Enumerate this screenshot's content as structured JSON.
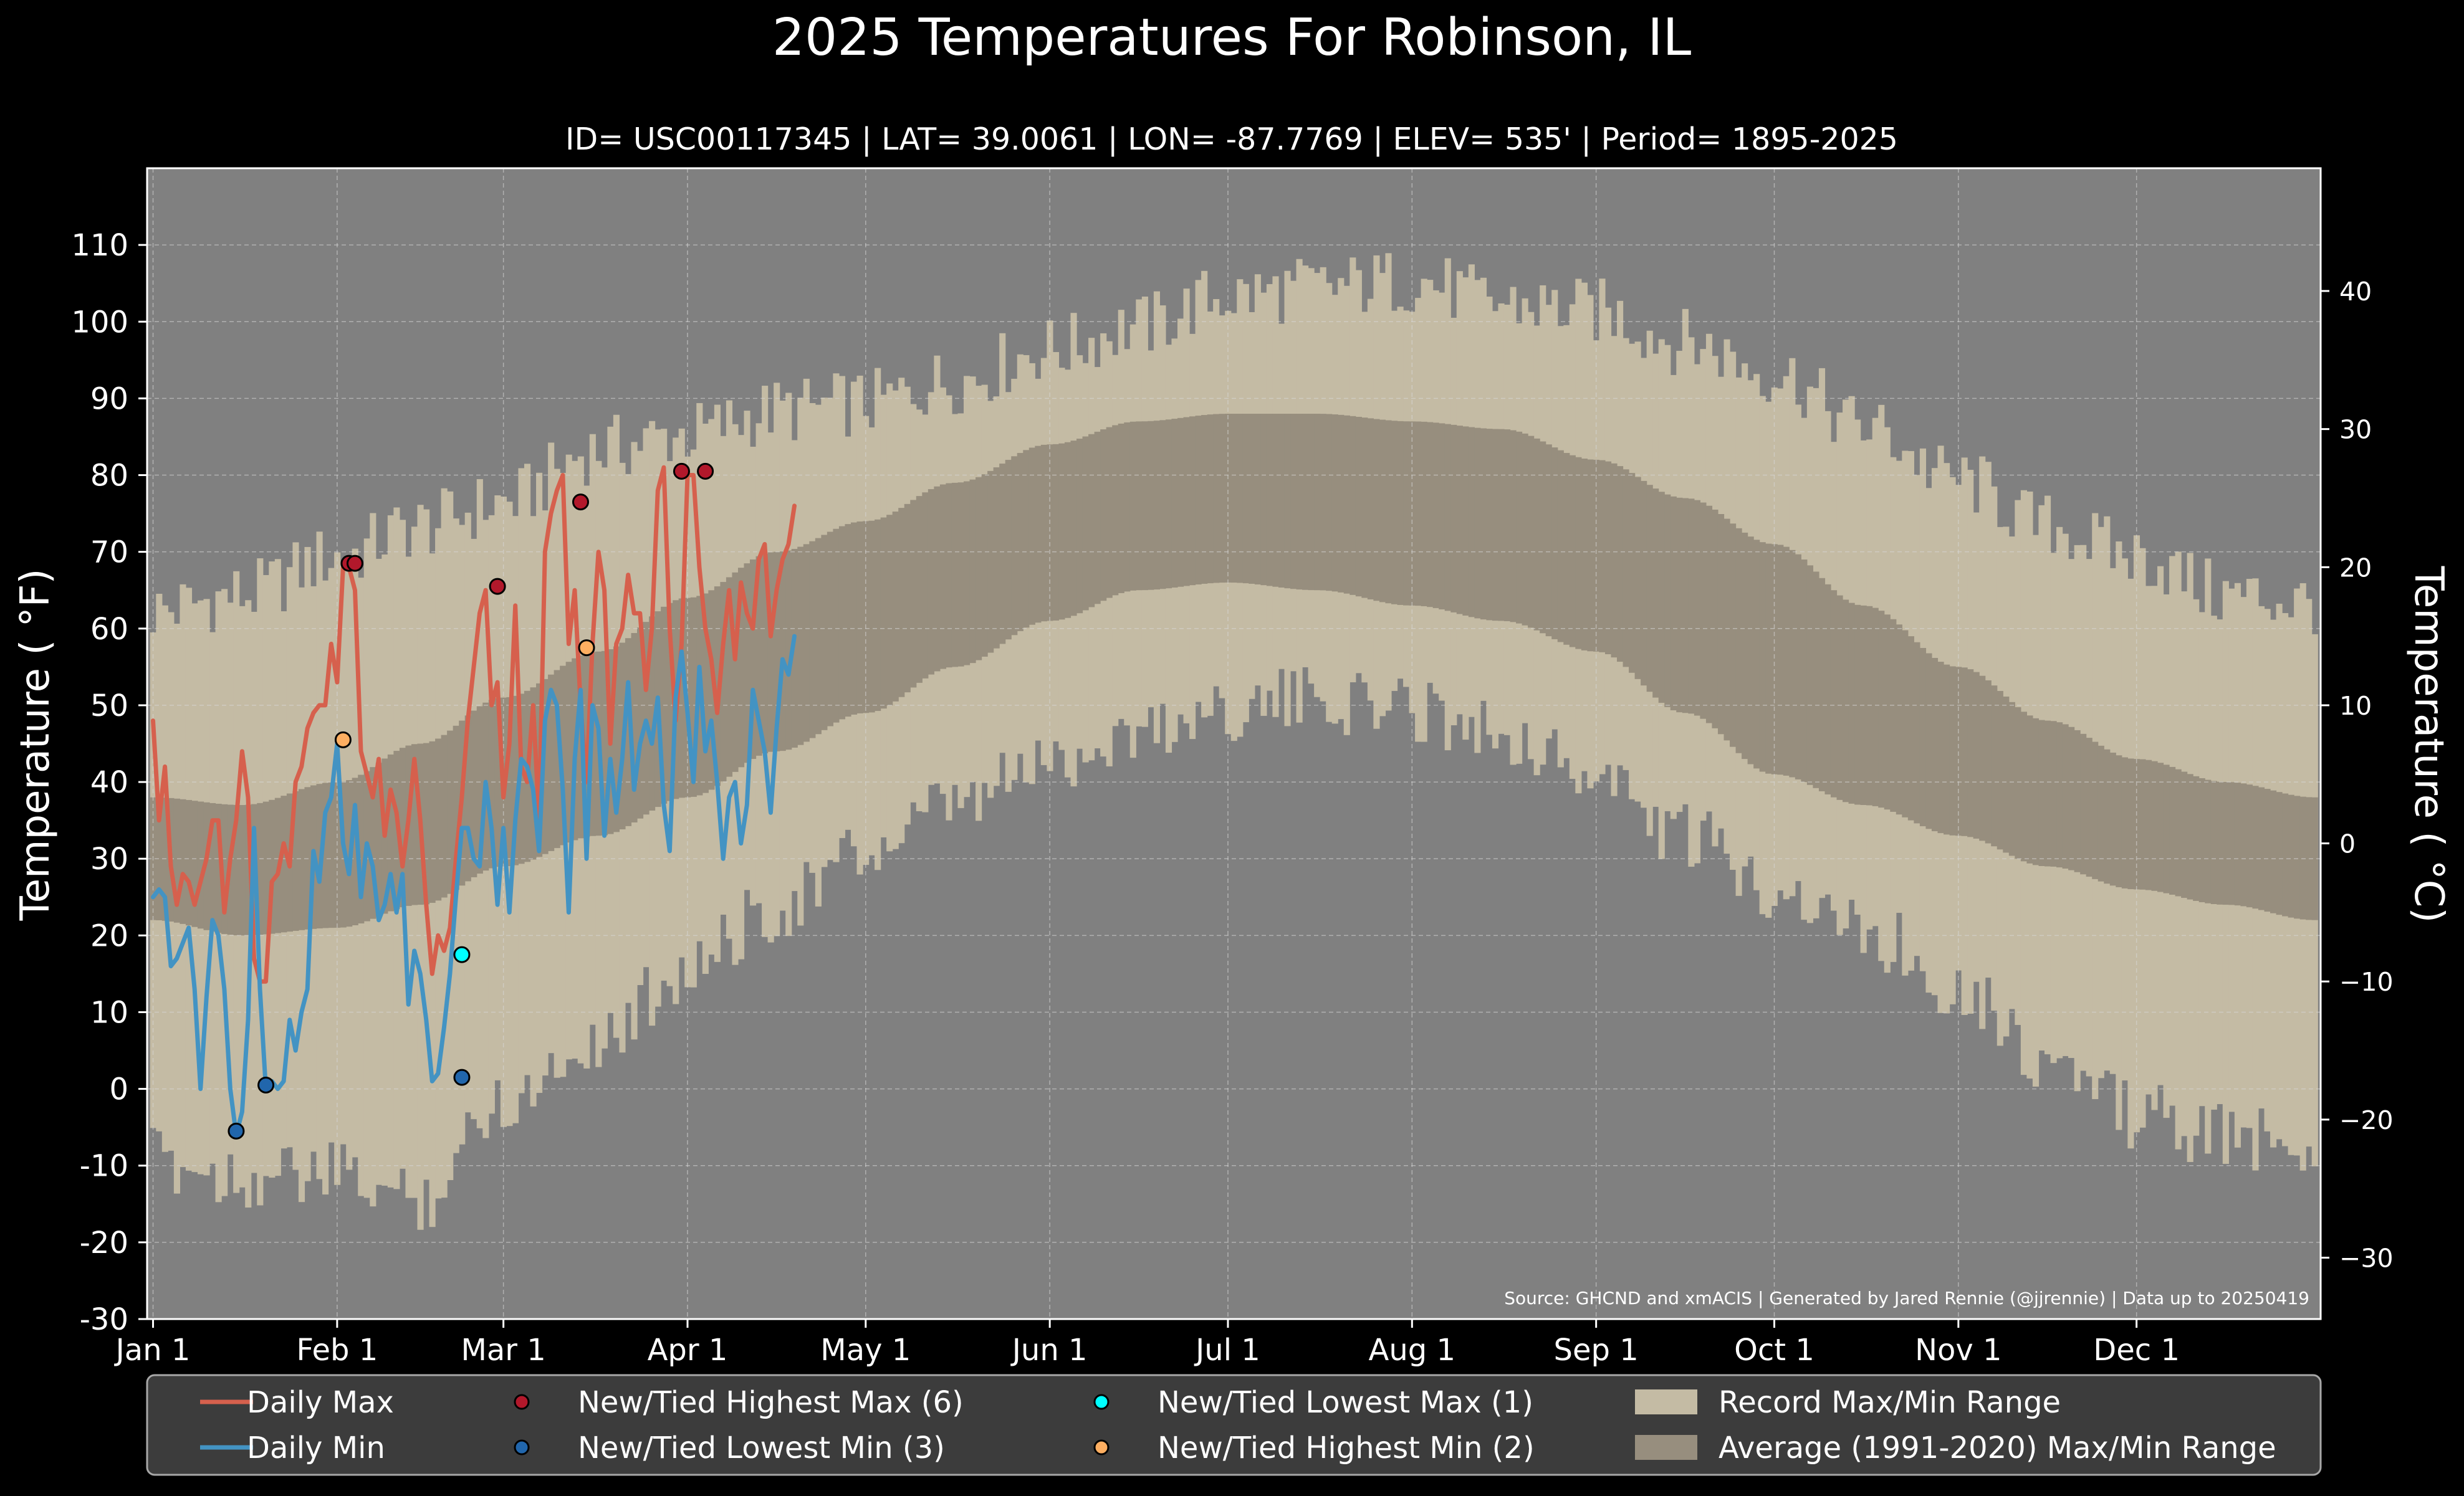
{
  "chart_data": {
    "type": "line",
    "title": "2025 Temperatures For Robinson, IL",
    "subtitle": "ID= USC00117345 | LAT= 39.0061 | LON= -87.7769 | ELEV= 535' | Period= 1895-2025",
    "ylabel_left": "Temperature ( °F)",
    "ylabel_right": "Temperature ( °C)",
    "source": "Source: GHCND and xmACIS | Generated by Jared Rennie (@jjrennie) | Data up to 20250419",
    "ylim_f": [
      -30,
      120
    ],
    "xlim_day": [
      -1,
      365
    ],
    "y_ticks_f": [
      -30,
      -20,
      -10,
      0,
      10,
      20,
      30,
      40,
      50,
      60,
      70,
      80,
      90,
      100,
      110
    ],
    "y_ticks_c": [
      -30,
      -20,
      -10,
      0,
      10,
      20,
      30,
      40
    ],
    "x_ticks": [
      {
        "label": "Jan 1",
        "day": 0
      },
      {
        "label": "Feb 1",
        "day": 31
      },
      {
        "label": "Mar 1",
        "day": 59
      },
      {
        "label": "Apr 1",
        "day": 90
      },
      {
        "label": "May 1",
        "day": 120
      },
      {
        "label": "Jun 1",
        "day": 151
      },
      {
        "label": "Jul 1",
        "day": 181
      },
      {
        "label": "Aug 1",
        "day": 212
      },
      {
        "label": "Sep 1",
        "day": 243
      },
      {
        "label": "Oct 1",
        "day": 273
      },
      {
        "label": "Nov 1",
        "day": 304
      },
      {
        "label": "Dec 1",
        "day": 334
      }
    ],
    "grid": true,
    "legend_position": "bottom",
    "record_max_anchors": [
      [
        0,
        61
      ],
      [
        15,
        63
      ],
      [
        31,
        68
      ],
      [
        45,
        72
      ],
      [
        59,
        75
      ],
      [
        75,
        82
      ],
      [
        90,
        84
      ],
      [
        105,
        87
      ],
      [
        120,
        88
      ],
      [
        135,
        91
      ],
      [
        151,
        95
      ],
      [
        166,
        98
      ],
      [
        181,
        102
      ],
      [
        196,
        103
      ],
      [
        212,
        104
      ],
      [
        227,
        101
      ],
      [
        243,
        100
      ],
      [
        258,
        96
      ],
      [
        273,
        92
      ],
      [
        288,
        85
      ],
      [
        304,
        78
      ],
      [
        319,
        72
      ],
      [
        334,
        68
      ],
      [
        349,
        63
      ],
      [
        364,
        62
      ]
    ],
    "record_min_anchors": [
      [
        0,
        -8
      ],
      [
        15,
        -10
      ],
      [
        31,
        -10
      ],
      [
        45,
        -13
      ],
      [
        59,
        0
      ],
      [
        75,
        8
      ],
      [
        90,
        17
      ],
      [
        105,
        25
      ],
      [
        120,
        32
      ],
      [
        135,
        38
      ],
      [
        151,
        44
      ],
      [
        166,
        48
      ],
      [
        181,
        51
      ],
      [
        196,
        52
      ],
      [
        212,
        51
      ],
      [
        227,
        48
      ],
      [
        243,
        42
      ],
      [
        258,
        34
      ],
      [
        273,
        28
      ],
      [
        288,
        22
      ],
      [
        304,
        15
      ],
      [
        319,
        5
      ],
      [
        334,
        -2
      ],
      [
        349,
        -5
      ],
      [
        364,
        -6
      ]
    ],
    "avg_max_anchors": [
      [
        0,
        38
      ],
      [
        15,
        37
      ],
      [
        31,
        40
      ],
      [
        45,
        45
      ],
      [
        59,
        51
      ],
      [
        75,
        57
      ],
      [
        90,
        64
      ],
      [
        105,
        70
      ],
      [
        120,
        74
      ],
      [
        135,
        79
      ],
      [
        151,
        84
      ],
      [
        166,
        87
      ],
      [
        181,
        88
      ],
      [
        196,
        88
      ],
      [
        212,
        87
      ],
      [
        227,
        86
      ],
      [
        243,
        82
      ],
      [
        258,
        77
      ],
      [
        273,
        71
      ],
      [
        288,
        63
      ],
      [
        304,
        55
      ],
      [
        319,
        48
      ],
      [
        334,
        43
      ],
      [
        349,
        40
      ],
      [
        364,
        38
      ]
    ],
    "avg_min_anchors": [
      [
        0,
        22
      ],
      [
        15,
        20
      ],
      [
        31,
        21
      ],
      [
        45,
        24
      ],
      [
        59,
        29
      ],
      [
        75,
        33
      ],
      [
        90,
        38
      ],
      [
        105,
        44
      ],
      [
        120,
        49
      ],
      [
        135,
        55
      ],
      [
        151,
        61
      ],
      [
        166,
        65
      ],
      [
        181,
        66
      ],
      [
        196,
        65
      ],
      [
        212,
        63
      ],
      [
        227,
        61
      ],
      [
        243,
        57
      ],
      [
        258,
        49
      ],
      [
        273,
        41
      ],
      [
        288,
        37
      ],
      [
        304,
        33
      ],
      [
        319,
        29
      ],
      [
        334,
        26
      ],
      [
        349,
        24
      ],
      [
        364,
        22
      ]
    ],
    "series": [
      {
        "name": "Daily Max",
        "color": "#d6604d",
        "x": [
          0,
          1,
          2,
          3,
          4,
          5,
          6,
          7,
          8,
          9,
          10,
          11,
          12,
          13,
          14,
          15,
          16,
          17,
          18,
          19,
          20,
          21,
          22,
          23,
          24,
          25,
          26,
          27,
          28,
          29,
          30,
          31,
          32,
          33,
          34,
          35,
          36,
          37,
          38,
          39,
          40,
          41,
          42,
          43,
          44,
          45,
          46,
          47,
          48,
          49,
          50,
          51,
          52,
          53,
          54,
          55,
          56,
          57,
          58,
          59,
          60,
          61,
          62,
          63,
          64,
          65,
          66,
          67,
          68,
          69,
          70,
          71,
          72,
          73,
          74,
          75,
          76,
          77,
          78,
          79,
          80,
          81,
          82,
          83,
          84,
          85,
          86,
          87,
          88,
          89,
          90,
          91,
          92,
          93,
          94,
          95,
          96,
          97,
          98,
          99,
          100,
          101,
          102,
          103,
          104,
          105,
          106,
          107,
          108
        ],
        "values": [
          48,
          35,
          42,
          29,
          24,
          28,
          27,
          24,
          27,
          30,
          35,
          35,
          23,
          30,
          35,
          44,
          38,
          17,
          14,
          14,
          27,
          28,
          32,
          29,
          40,
          42,
          47,
          49,
          50,
          50,
          58,
          53,
          68,
          68,
          65,
          44,
          41,
          38,
          43,
          33,
          39,
          36,
          29,
          35,
          43,
          35,
          24,
          15,
          20,
          18,
          21,
          30,
          38,
          48,
          55,
          62,
          65,
          50,
          53,
          38,
          45,
          63,
          42,
          40,
          50,
          35,
          70,
          75,
          78,
          80,
          58,
          65,
          50,
          40,
          58,
          70,
          65,
          45,
          58,
          60,
          67,
          62,
          62,
          52,
          60,
          78,
          81,
          60,
          48,
          58,
          80,
          80,
          68,
          60,
          56,
          49,
          58,
          65,
          56,
          66,
          62,
          60,
          69,
          71,
          59,
          65,
          69,
          71,
          76
        ]
      },
      {
        "name": "Daily Min",
        "color": "#4393c3",
        "x": [
          0,
          1,
          2,
          3,
          4,
          5,
          6,
          7,
          8,
          9,
          10,
          11,
          12,
          13,
          14,
          15,
          16,
          17,
          18,
          19,
          20,
          21,
          22,
          23,
          24,
          25,
          26,
          27,
          28,
          29,
          30,
          31,
          32,
          33,
          34,
          35,
          36,
          37,
          38,
          39,
          40,
          41,
          42,
          43,
          44,
          45,
          46,
          47,
          48,
          49,
          50,
          51,
          52,
          53,
          54,
          55,
          56,
          57,
          58,
          59,
          60,
          61,
          62,
          63,
          64,
          65,
          66,
          67,
          68,
          69,
          70,
          71,
          72,
          73,
          74,
          75,
          76,
          77,
          78,
          79,
          80,
          81,
          82,
          83,
          84,
          85,
          86,
          87,
          88,
          89,
          90,
          91,
          92,
          93,
          94,
          95,
          96,
          97,
          98,
          99,
          100,
          101,
          102,
          103,
          104,
          105,
          106,
          107,
          108
        ],
        "values": [
          25,
          26,
          25,
          16,
          17,
          19,
          21,
          13,
          0,
          12,
          22,
          20,
          13,
          0,
          -6,
          -3,
          9,
          34,
          13,
          0,
          1,
          0,
          1,
          9,
          5,
          10,
          13,
          31,
          27,
          36,
          38,
          45,
          32,
          28,
          37,
          25,
          32,
          29,
          22,
          24,
          28,
          23,
          28,
          11,
          18,
          15,
          9,
          1,
          2,
          8,
          15,
          25,
          34,
          34,
          30,
          29,
          40,
          34,
          24,
          34,
          23,
          35,
          43,
          42,
          39,
          31,
          48,
          52,
          50,
          39,
          23,
          43,
          52,
          30,
          50,
          47,
          33,
          43,
          36,
          43,
          53,
          39,
          45,
          48,
          45,
          51,
          37,
          31,
          51,
          57,
          49,
          40,
          55,
          44,
          48,
          40,
          30,
          38,
          40,
          32,
          37,
          52,
          48,
          44,
          36,
          47,
          56,
          54,
          59
        ]
      }
    ],
    "record_markers": [
      {
        "label": "New/Tied Highest Max (6)",
        "color": "#b2182b",
        "points": [
          [
            33,
            68.5
          ],
          [
            34,
            68.5
          ],
          [
            58,
            65.5
          ],
          [
            72,
            76.5
          ],
          [
            89,
            80.5
          ],
          [
            93,
            80.5
          ]
        ]
      },
      {
        "label": "New/Tied Lowest Min (3)",
        "color": "#2166ac",
        "points": [
          [
            14,
            -5.5
          ],
          [
            19,
            0.5
          ],
          [
            52,
            1.5
          ]
        ]
      },
      {
        "label": "New/Tied Lowest Max (1)",
        "color": "#00ffff",
        "points": [
          [
            52,
            17.5
          ]
        ]
      },
      {
        "label": "New/Tied Highest Min (2)",
        "color": "#fdae61",
        "points": [
          [
            32,
            45.5
          ],
          [
            73,
            57.5
          ]
        ]
      }
    ],
    "legend": [
      {
        "label": "Daily Max",
        "kind": "line",
        "color": "#d6604d"
      },
      {
        "label": "Daily Min",
        "kind": "line",
        "color": "#4393c3"
      },
      {
        "label": "New/Tied Highest Max (6)",
        "kind": "dot",
        "color": "#b2182b"
      },
      {
        "label": "New/Tied Lowest Min (3)",
        "kind": "dot",
        "color": "#2166ac"
      },
      {
        "label": "New/Tied Lowest Max (1)",
        "kind": "dot",
        "color": "#00ffff"
      },
      {
        "label": "New/Tied Highest Min (2)",
        "kind": "dot",
        "color": "#fdae61"
      },
      {
        "label": "Record Max/Min Range",
        "kind": "patch",
        "color": "#c4bba4"
      },
      {
        "label": "Average (1991-2020) Max/Min Range",
        "kind": "patch",
        "color": "#978e7e"
      }
    ],
    "colors": {
      "background": "#000000",
      "plot_background": "#808080",
      "record_band": "#c4bba4",
      "average_band": "#978e7e",
      "legend_background": "#3c3c3c"
    }
  }
}
